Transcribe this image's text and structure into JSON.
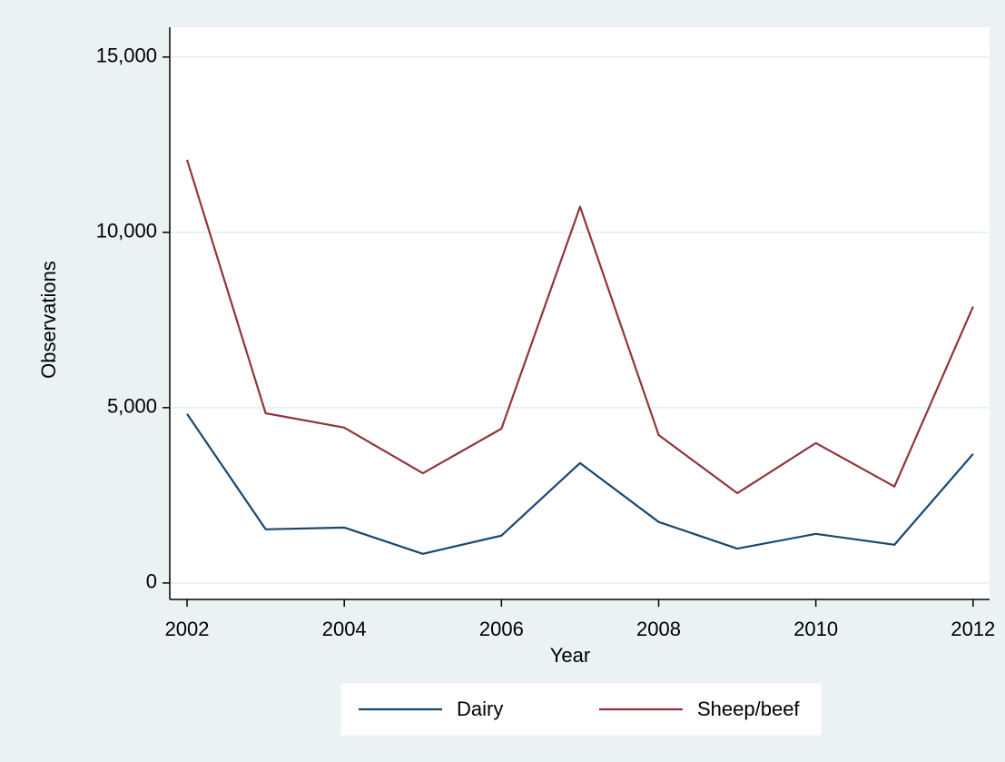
{
  "chart_data": {
    "type": "line",
    "x_label": "Year",
    "y_label": "Observations",
    "x": [
      2002,
      2003,
      2004,
      2005,
      2006,
      2007,
      2008,
      2009,
      2010,
      2011,
      2012
    ],
    "series": [
      {
        "name": "Dairy",
        "color": "#1a476f",
        "values": [
          4820,
          1530,
          1580,
          830,
          1350,
          3420,
          1740,
          980,
          1400,
          1090,
          3680
        ]
      },
      {
        "name": "Sheep/beef",
        "color": "#90353b",
        "values": [
          12070,
          4840,
          4430,
          3130,
          4400,
          10730,
          4220,
          2560,
          3990,
          2750,
          7880
        ]
      }
    ],
    "xlim": [
      2001.78,
      2012.21
    ],
    "xticks": [
      2002,
      2004,
      2006,
      2008,
      2010,
      2012
    ],
    "ylim": [
      -470,
      15850
    ],
    "yticks": [
      0,
      {
        "value": 5000,
        "label": "5,000"
      },
      {
        "value": 10000,
        "label": "10,000"
      },
      {
        "value": 15000,
        "label": "15,000"
      }
    ],
    "grid": true,
    "legend": "bottom"
  }
}
